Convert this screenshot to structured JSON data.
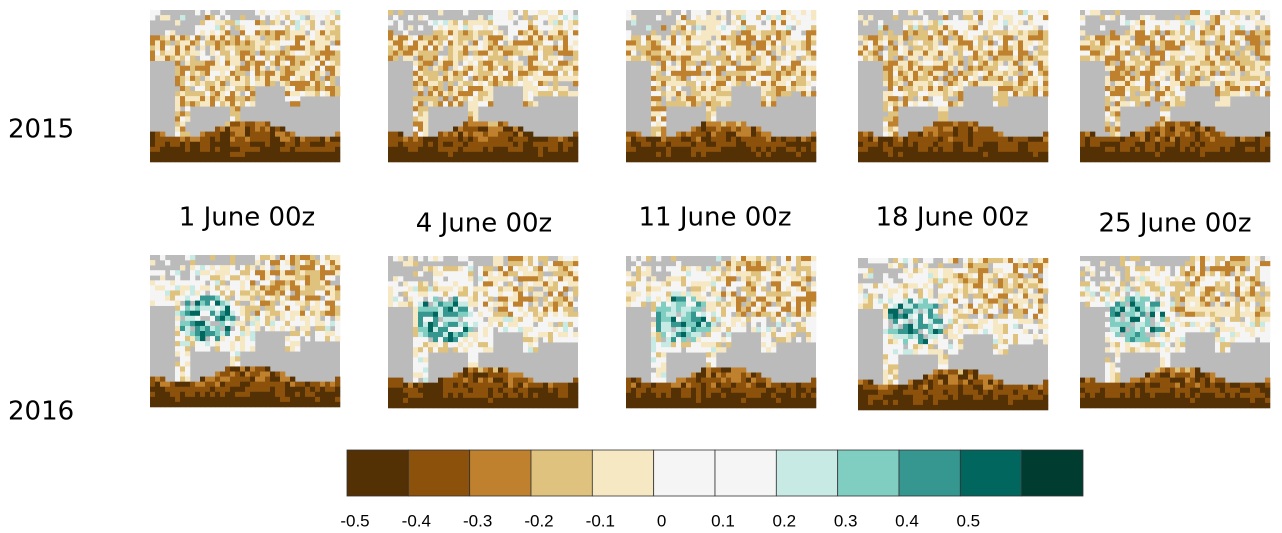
{
  "row_labels": [
    "2015",
    "2016"
  ],
  "column_labels": [
    "1 June 00z",
    "4 June 00z",
    "11 June 00z",
    "18 June 00z",
    "25 June 00z"
  ],
  "colorbar": {
    "colors": [
      "#543005",
      "#8c510a",
      "#bf812d",
      "#dfc27d",
      "#f6e8c3",
      "#f5f5f5",
      "#f5f5f5",
      "#c7eae5",
      "#80cdc1",
      "#35978f",
      "#01665e",
      "#003c30"
    ],
    "clim": [
      -0.5,
      0.7
    ],
    "ticks": [
      -0.5,
      -0.4,
      -0.3,
      -0.2,
      -0.1,
      0,
      0.1,
      0.2,
      0.3,
      0.4,
      0.5
    ]
  }
}
